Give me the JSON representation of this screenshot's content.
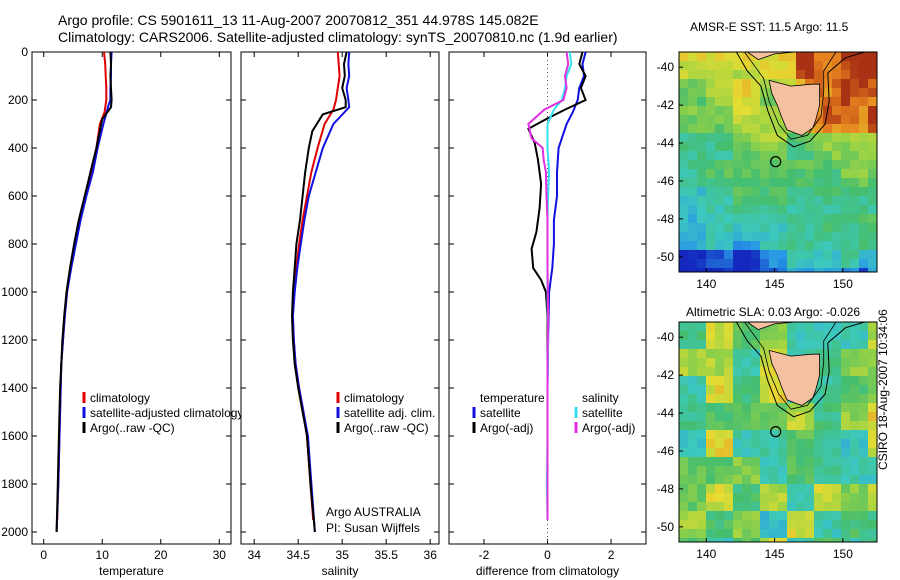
{
  "header": {
    "line1": "Argo profile: CS 5901611_13 11-Aug-2007 20070812_351 44.978S 145.082E",
    "line2": "Climatology: CARS2006. Satellite-adjusted climatology: synTS_20070810.nc (1.9d earlier)"
  },
  "colors": {
    "climatology": "#e00000",
    "satellite": "#1010e0",
    "argo": "#000000",
    "sal_satellite": "#30e0f0",
    "sal_argo": "#e030e0",
    "zero_line": "#555555"
  },
  "chart_data": [
    {
      "type": "line",
      "xlabel": "temperature",
      "xlim": [
        -2,
        32
      ],
      "ylim": [
        0,
        2050
      ],
      "xticks": [
        "0",
        "10",
        "20",
        "30"
      ],
      "yticks": [
        "0",
        "200",
        "400",
        "600",
        "800",
        "1000",
        "1200",
        "1400",
        "1600",
        "1800",
        "2000"
      ],
      "y_reversed": true,
      "legend": [
        "climatology",
        "satellite-adjusted climatology",
        "Argo(..raw -QC)"
      ],
      "series": [
        {
          "name": "climatology",
          "color": "#e00000",
          "points": [
            [
              10.3,
              0
            ],
            [
              10.5,
              50
            ],
            [
              10.6,
              100
            ],
            [
              10.7,
              150
            ],
            [
              10.7,
              200
            ],
            [
              10.4,
              250
            ],
            [
              9.6,
              300
            ],
            [
              9.0,
              400
            ],
            [
              8.2,
              500
            ],
            [
              7.2,
              600
            ],
            [
              6.2,
              700
            ],
            [
              5.4,
              800
            ],
            [
              4.6,
              900
            ],
            [
              4.0,
              1000
            ],
            [
              3.6,
              1100
            ],
            [
              3.3,
              1200
            ],
            [
              3.0,
              1300
            ],
            [
              2.9,
              1400
            ],
            [
              2.7,
              1600
            ],
            [
              2.5,
              1800
            ],
            [
              2.3,
              1950
            ]
          ]
        },
        {
          "name": "satellite-adjusted climatology",
          "color": "#1010e0",
          "points": [
            [
              11.6,
              0
            ],
            [
              11.5,
              50
            ],
            [
              11.5,
              100
            ],
            [
              11.4,
              150
            ],
            [
              11.4,
              200
            ],
            [
              11.1,
              220
            ],
            [
              10.2,
              300
            ],
            [
              9.2,
              400
            ],
            [
              8.4,
              500
            ],
            [
              7.3,
              600
            ],
            [
              6.3,
              700
            ],
            [
              5.5,
              800
            ],
            [
              4.7,
              900
            ],
            [
              4.0,
              1000
            ],
            [
              3.6,
              1100
            ],
            [
              3.3,
              1200
            ],
            [
              3.0,
              1300
            ],
            [
              2.9,
              1400
            ],
            [
              2.7,
              1600
            ],
            [
              2.5,
              1800
            ],
            [
              2.2,
              2000
            ]
          ]
        },
        {
          "name": "Argo(..raw -QC)",
          "color": "#000000",
          "points": [
            [
              11.4,
              0
            ],
            [
              11.5,
              50
            ],
            [
              11.4,
              100
            ],
            [
              11.5,
              150
            ],
            [
              11.6,
              200
            ],
            [
              11.5,
              230
            ],
            [
              10.0,
              280
            ],
            [
              9.0,
              400
            ],
            [
              8.0,
              500
            ],
            [
              7.0,
              600
            ],
            [
              6.0,
              700
            ],
            [
              5.2,
              800
            ],
            [
              4.5,
              900
            ],
            [
              3.9,
              1000
            ],
            [
              3.5,
              1100
            ],
            [
              3.2,
              1200
            ],
            [
              3.0,
              1300
            ],
            [
              2.8,
              1400
            ],
            [
              2.6,
              1600
            ],
            [
              2.4,
              1800
            ],
            [
              2.2,
              2000
            ]
          ]
        }
      ]
    },
    {
      "type": "line",
      "xlabel": "salinity",
      "xlim": [
        33.85,
        36.1
      ],
      "ylim": [
        0,
        2050
      ],
      "xticks": [
        "34",
        "34.5",
        "35",
        "35.5",
        "36"
      ],
      "yticks": [],
      "y_reversed": true,
      "legend": [
        "climatology",
        "satellite adj. clim.",
        "Argo(..raw -QC)"
      ],
      "annotation": [
        "Argo AUSTRALIA",
        "PI: Susan Wijffels"
      ],
      "series": [
        {
          "name": "climatology",
          "color": "#e00000",
          "points": [
            [
              34.95,
              0
            ],
            [
              34.97,
              100
            ],
            [
              34.95,
              150
            ],
            [
              34.93,
              200
            ],
            [
              34.9,
              240
            ],
            [
              34.8,
              300
            ],
            [
              34.72,
              400
            ],
            [
              34.65,
              500
            ],
            [
              34.6,
              600
            ],
            [
              34.55,
              700
            ],
            [
              34.51,
              800
            ],
            [
              34.48,
              900
            ],
            [
              34.45,
              1000
            ],
            [
              34.44,
              1100
            ],
            [
              34.45,
              1200
            ],
            [
              34.47,
              1300
            ],
            [
              34.51,
              1400
            ],
            [
              34.56,
              1500
            ],
            [
              34.6,
              1600
            ],
            [
              34.64,
              1800
            ],
            [
              34.67,
              1950
            ]
          ]
        },
        {
          "name": "satellite adj. clim.",
          "color": "#1010e0",
          "points": [
            [
              35.08,
              0
            ],
            [
              35.07,
              50
            ],
            [
              35.08,
              100
            ],
            [
              35.05,
              150
            ],
            [
              35.07,
              200
            ],
            [
              35.08,
              230
            ],
            [
              34.9,
              300
            ],
            [
              34.78,
              400
            ],
            [
              34.7,
              500
            ],
            [
              34.62,
              600
            ],
            [
              34.57,
              700
            ],
            [
              34.53,
              800
            ],
            [
              34.49,
              900
            ],
            [
              34.46,
              1000
            ],
            [
              34.44,
              1100
            ],
            [
              34.45,
              1200
            ],
            [
              34.47,
              1300
            ],
            [
              34.51,
              1400
            ],
            [
              34.56,
              1500
            ],
            [
              34.61,
              1600
            ],
            [
              34.65,
              1800
            ],
            [
              34.69,
              2000
            ]
          ]
        },
        {
          "name": "Argo(..raw -QC)",
          "color": "#000000",
          "points": [
            [
              35.05,
              0
            ],
            [
              35.02,
              50
            ],
            [
              35.03,
              100
            ],
            [
              35.0,
              150
            ],
            [
              35.04,
              200
            ],
            [
              35.04,
              230
            ],
            [
              34.78,
              260
            ],
            [
              34.66,
              330
            ],
            [
              34.62,
              400
            ],
            [
              34.58,
              500
            ],
            [
              34.55,
              600
            ],
            [
              34.52,
              700
            ],
            [
              34.48,
              800
            ],
            [
              34.46,
              900
            ],
            [
              34.44,
              1000
            ],
            [
              34.43,
              1100
            ],
            [
              34.44,
              1200
            ],
            [
              34.46,
              1300
            ],
            [
              34.5,
              1400
            ],
            [
              34.55,
              1500
            ],
            [
              34.6,
              1600
            ],
            [
              34.64,
              1800
            ],
            [
              34.69,
              2000
            ]
          ]
        }
      ]
    },
    {
      "type": "line",
      "xlabel": "difference from climatology",
      "xlim": [
        -3.1,
        3.1
      ],
      "ylim": [
        0,
        2050
      ],
      "xticks": [
        "-2",
        "0",
        "2"
      ],
      "yticks": [],
      "y_reversed": true,
      "legend_left": [
        "temperature",
        "satellite",
        "Argo(-adj)"
      ],
      "legend_right": [
        "salinity",
        "satellite",
        "Argo(-adj)"
      ],
      "series": [
        {
          "name": "temperature satellite",
          "color": "#1010e0",
          "points": [
            [
              1.2,
              0
            ],
            [
              1.1,
              50
            ],
            [
              1.15,
              100
            ],
            [
              1.0,
              150
            ],
            [
              0.95,
              200
            ],
            [
              0.8,
              250
            ],
            [
              0.6,
              300
            ],
            [
              0.35,
              400
            ],
            [
              0.3,
              500
            ],
            [
              0.3,
              600
            ],
            [
              0.2,
              700
            ],
            [
              0.2,
              800
            ],
            [
              0.15,
              900
            ],
            [
              0.05,
              1000
            ],
            [
              0.02,
              1200
            ],
            [
              0,
              1400
            ],
            [
              0,
              1600
            ],
            [
              0,
              1800
            ],
            [
              0,
              1950
            ]
          ]
        },
        {
          "name": "temperature Argo(-adj)",
          "color": "#000000",
          "points": [
            [
              1.1,
              0
            ],
            [
              1.0,
              50
            ],
            [
              1.2,
              100
            ],
            [
              1.05,
              150
            ],
            [
              1.2,
              200
            ],
            [
              0.55,
              240
            ],
            [
              -0.05,
              280
            ],
            [
              -0.6,
              320
            ],
            [
              -0.4,
              380
            ],
            [
              -0.3,
              450
            ],
            [
              -0.2,
              550
            ],
            [
              -0.25,
              650
            ],
            [
              -0.35,
              750
            ],
            [
              -0.5,
              820
            ],
            [
              -0.45,
              900
            ],
            [
              -0.2,
              950
            ],
            [
              -0.05,
              1000
            ],
            [
              0,
              1100
            ],
            [
              0,
              1300
            ],
            [
              0,
              1500
            ],
            [
              0,
              1700
            ],
            [
              0,
              1950
            ]
          ]
        },
        {
          "name": "salinity satellite",
          "color": "#30e0f0",
          "points": [
            [
              0.7,
              0
            ],
            [
              0.75,
              50
            ],
            [
              0.6,
              100
            ],
            [
              0.55,
              150
            ],
            [
              0.45,
              200
            ],
            [
              0.2,
              240
            ],
            [
              0.0,
              300
            ],
            [
              0.0,
              400
            ],
            [
              0.05,
              500
            ],
            [
              0.02,
              600
            ],
            [
              0.0,
              700
            ],
            [
              0.0,
              800
            ],
            [
              0.0,
              1000
            ],
            [
              0.02,
              1200
            ],
            [
              0.0,
              1400
            ],
            [
              0.0,
              1600
            ],
            [
              -0.02,
              1800
            ],
            [
              0,
              1950
            ]
          ]
        },
        {
          "name": "salinity Argo(-adj)",
          "color": "#e030e0",
          "points": [
            [
              0.6,
              0
            ],
            [
              0.65,
              50
            ],
            [
              0.55,
              100
            ],
            [
              0.6,
              150
            ],
            [
              0.5,
              200
            ],
            [
              -0.1,
              240
            ],
            [
              -0.6,
              300
            ],
            [
              -0.5,
              360
            ],
            [
              -0.15,
              400
            ],
            [
              -0.12,
              450
            ],
            [
              -0.05,
              500
            ],
            [
              -0.03,
              600
            ],
            [
              0.0,
              700
            ],
            [
              0.0,
              900
            ],
            [
              0.02,
              1100
            ],
            [
              0.0,
              1300
            ],
            [
              0.0,
              1500
            ],
            [
              0.0,
              1700
            ],
            [
              0,
              1950
            ]
          ]
        }
      ]
    }
  ],
  "maps": [
    {
      "title": "AMSR-E SST: 11.5 Argo: 11.5",
      "xticks": [
        "140",
        "145",
        "150"
      ],
      "yticks": [
        "-40",
        "-42",
        "-44",
        "-46",
        "-48",
        "-50"
      ],
      "xlim": [
        138,
        152.5
      ],
      "ylim": [
        -50.8,
        -39.2
      ],
      "marker": {
        "lon": 145.08,
        "lat": -44.98
      }
    },
    {
      "title": "Altimetric SLA: 0.03 Argo: -0.026",
      "xticks": [
        "140",
        "145",
        "150"
      ],
      "yticks": [
        "-40",
        "-42",
        "-44",
        "-46",
        "-48",
        "-50"
      ],
      "xlim": [
        138,
        152.5
      ],
      "ylim": [
        -50.8,
        -39.2
      ],
      "marker": {
        "lon": 145.08,
        "lat": -44.98
      }
    }
  ],
  "side_label": "CSIRO 18-Aug-2007 10:34:06"
}
